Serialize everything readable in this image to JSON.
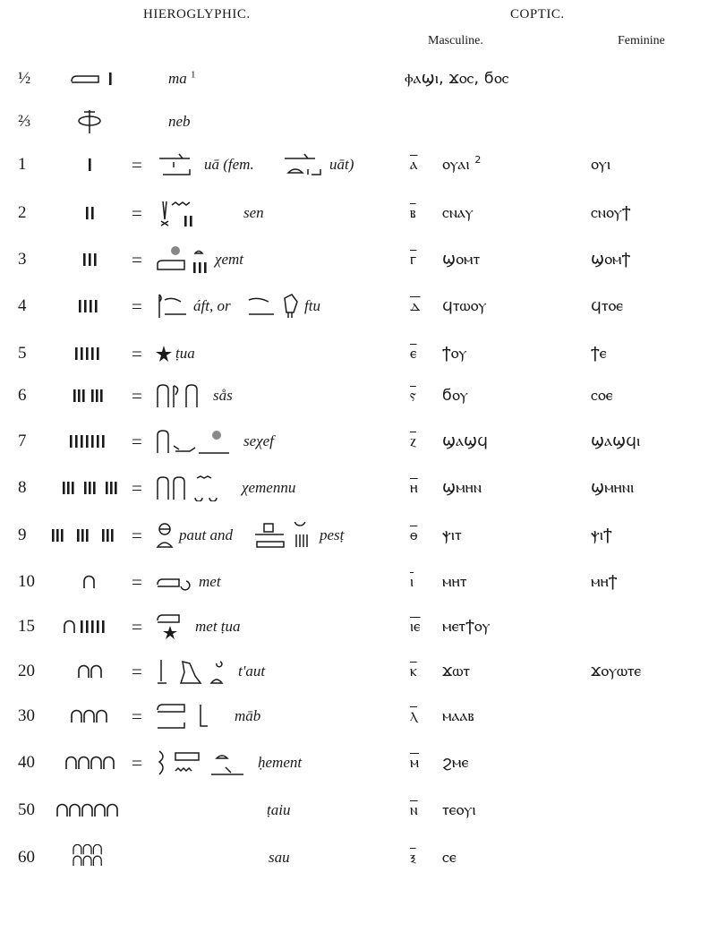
{
  "header": {
    "hieroglyphic": "HIEROGLYPHIC.",
    "coptic": "COPTIC.",
    "masculine": "Masculine.",
    "feminine": "Feminine"
  },
  "rows": [
    {
      "number": "½",
      "reading": [
        "ma"
      ],
      "note": "1",
      "masculine": "ⲫⲁϣⲓ, ϫⲟⲥ, ϭⲟⲥ"
    },
    {
      "number": "⅔",
      "reading": [
        "neb"
      ]
    },
    {
      "number": "1",
      "equals": "=",
      "reading": [
        "uā (fem.",
        "uāt)"
      ],
      "numeral": "ⲁ",
      "masculine": "ⲟⲩⲁⲓ",
      "note": "2",
      "feminine": "ⲟⲩⲓ"
    },
    {
      "number": "2",
      "equals": "=",
      "reading": [
        "sen"
      ],
      "numeral": "ⲃ",
      "masculine": "ⲥⲛⲁⲩ",
      "feminine": "ⲥⲛⲟⲩϯ"
    },
    {
      "number": "3",
      "equals": "=",
      "reading": [
        "χemt"
      ],
      "numeral": "ⲅ",
      "masculine": "ϣⲟⲙⲧ",
      "feminine": "ϣⲟⲙϯ"
    },
    {
      "number": "4",
      "equals": "=",
      "reading": [
        "áft, or",
        "ftu"
      ],
      "numeral": "ⲇ",
      "masculine": "ϥⲧⲱⲟⲩ",
      "feminine": "ϥⲧⲟⲉ"
    },
    {
      "number": "5",
      "equals": "=",
      "reading": [
        "ṭua"
      ],
      "numeral": "ⲉ",
      "masculine": "ϯⲟⲩ",
      "feminine": "ϯⲉ"
    },
    {
      "number": "6",
      "equals": "=",
      "reading": [
        "sås"
      ],
      "numeral": "ⲋ",
      "masculine": "ϭⲟⲩ",
      "feminine": "ⲥⲟⲉ"
    },
    {
      "number": "7",
      "equals": "=",
      "reading": [
        "seχef"
      ],
      "numeral": "ⲍ",
      "masculine": "ϣⲁϣϥ",
      "feminine": "ϣⲁϣϥⲓ"
    },
    {
      "number": "8",
      "equals": "=",
      "reading": [
        "χemennu"
      ],
      "numeral": "ⲏ",
      "masculine": "ϣⲙⲏⲛ",
      "feminine": "ϣⲙⲏⲛⲓ"
    },
    {
      "number": "9",
      "equals": "=",
      "reading": [
        "paut and",
        "pesṭ"
      ],
      "numeral": "ⲑ",
      "masculine": "ⲯⲓⲧ",
      "feminine": "ⲯⲓϯ"
    },
    {
      "number": "10",
      "equals": "=",
      "reading": [
        "met"
      ],
      "numeral": "ⲓ",
      "masculine": "ⲙⲏⲧ",
      "feminine": "ⲙⲏϯ"
    },
    {
      "number": "15",
      "equals": "=",
      "reading": [
        "met ṭua"
      ],
      "numeral": "ⲓⲉ",
      "masculine": "ⲙⲉⲧϯⲟⲩ"
    },
    {
      "number": "20",
      "equals": "=",
      "reading": [
        "t'aut"
      ],
      "numeral": "ⲕ",
      "masculine": "ϫⲱⲧ",
      "feminine": "ϫⲟⲩⲱⲧⲉ"
    },
    {
      "number": "30",
      "equals": "=",
      "reading": [
        "māb"
      ],
      "numeral": "ⲗ",
      "masculine": "ⲙⲁⲁⲃ"
    },
    {
      "number": "40",
      "equals": "=",
      "reading": [
        "ḥement"
      ],
      "numeral": "ⲙ",
      "masculine": "ϩⲙⲉ"
    },
    {
      "number": "50",
      "reading": [
        "ṭaiu"
      ],
      "numeral": "ⲛ",
      "masculine": "ⲧⲉⲟⲩⲓ"
    },
    {
      "number": "60",
      "reading": [
        "sau"
      ],
      "numeral": "ⲝ",
      "masculine": "ⲥⲉ"
    }
  ]
}
